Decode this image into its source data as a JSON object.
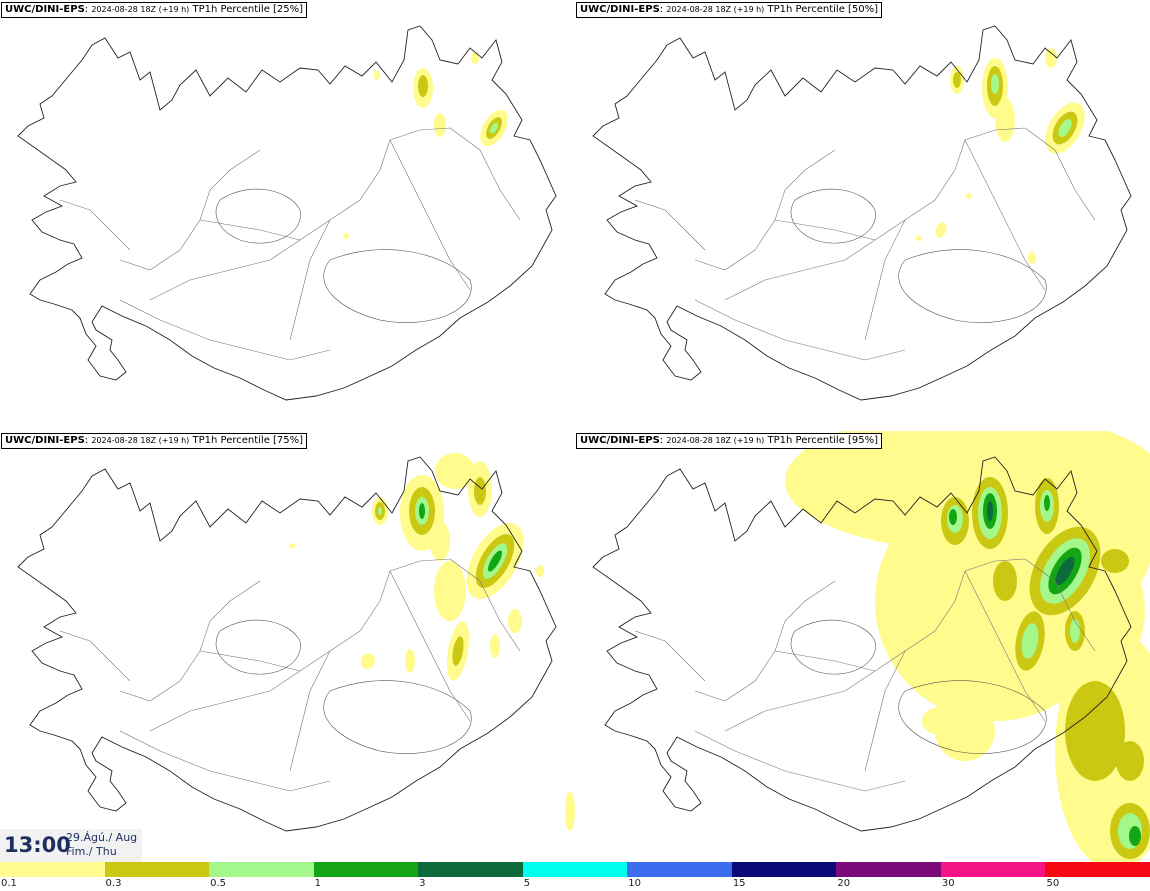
{
  "panels": [
    {
      "model": "UWC/DINI-EPS",
      "run": "2024-08-28 18Z (+19 h)",
      "product": "TP1h Percentile [25%]"
    },
    {
      "model": "UWC/DINI-EPS",
      "run": "2024-08-28 18Z (+19 h)",
      "product": "TP1h Percentile [50%]"
    },
    {
      "model": "UWC/DINI-EPS",
      "run": "2024-08-28 18Z (+19 h)",
      "product": "TP1h Percentile [75%]"
    },
    {
      "model": "UWC/DINI-EPS",
      "run": "2024-08-28 18Z (+19 h)",
      "product": "TP1h Percentile [95%]"
    }
  ],
  "valid_time": {
    "hour": "13:00",
    "date_line": "29.Ágú./ Aug",
    "weekday_line": "Fim./ Thu"
  },
  "legend": {
    "colors": [
      "#fffb8c",
      "#cbc814",
      "#a4f78a",
      "#14a514",
      "#0d6a3c",
      "#00ffef",
      "#3c6cf0",
      "#0a0a78",
      "#7a0a78",
      "#f51486",
      "#f50a14"
    ],
    "ticks": [
      "0.1",
      "0.3",
      "0.5",
      "1",
      "3",
      "5",
      "10",
      "15",
      "20",
      "30",
      "50"
    ]
  }
}
